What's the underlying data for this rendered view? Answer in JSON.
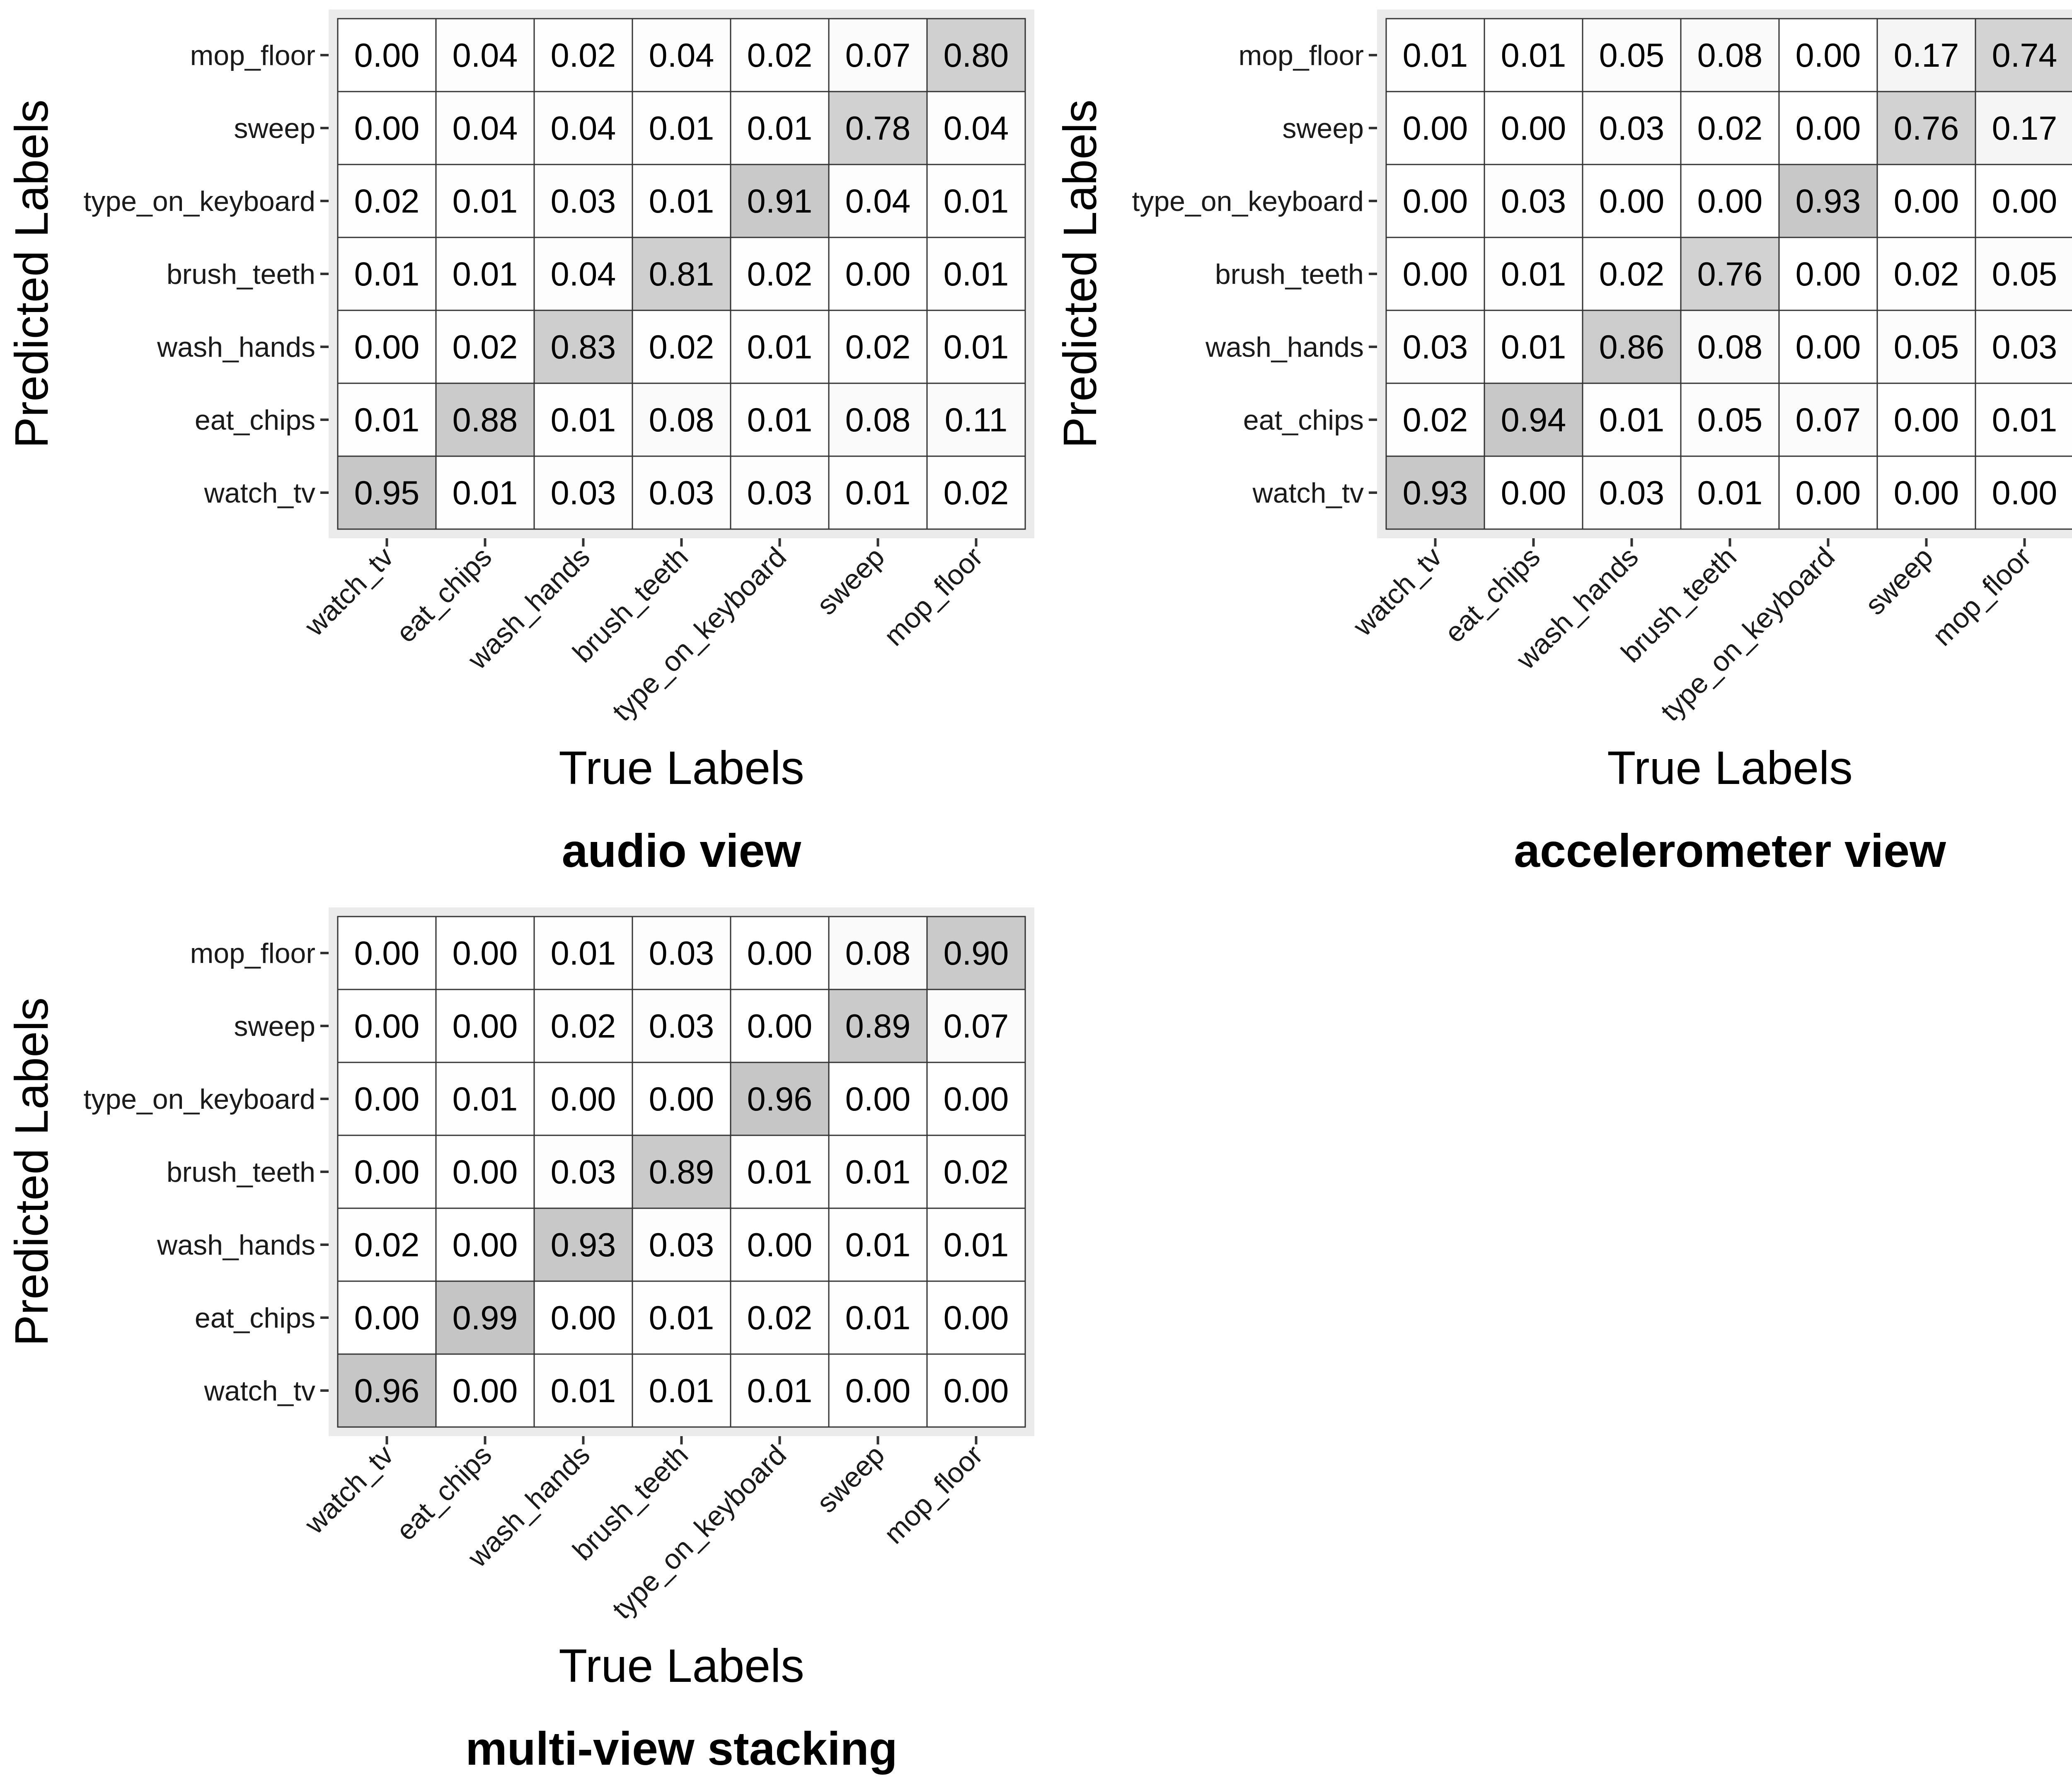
{
  "chart_data": [
    {
      "type": "heatmap",
      "title": "audio view",
      "xlabel": "True Labels",
      "ylabel": "Predicted Labels",
      "x_categories": [
        "watch_tv",
        "eat_chips",
        "wash_hands",
        "brush_teeth",
        "type_on_keyboard",
        "sweep",
        "mop_floor"
      ],
      "y_categories": [
        "mop_floor",
        "sweep",
        "type_on_keyboard",
        "brush_teeth",
        "wash_hands",
        "eat_chips",
        "watch_tv"
      ],
      "values": [
        [
          "0.00",
          "0.04",
          "0.02",
          "0.04",
          "0.02",
          "0.07",
          "0.80"
        ],
        [
          "0.00",
          "0.04",
          "0.04",
          "0.01",
          "0.01",
          "0.78",
          "0.04"
        ],
        [
          "0.02",
          "0.01",
          "0.03",
          "0.01",
          "0.91",
          "0.04",
          "0.01"
        ],
        [
          "0.01",
          "0.01",
          "0.04",
          "0.81",
          "0.02",
          "0.00",
          "0.01"
        ],
        [
          "0.00",
          "0.02",
          "0.83",
          "0.02",
          "0.01",
          "0.02",
          "0.01"
        ],
        [
          "0.01",
          "0.88",
          "0.01",
          "0.08",
          "0.01",
          "0.08",
          "0.11"
        ],
        [
          "0.95",
          "0.01",
          "0.03",
          "0.03",
          "0.03",
          "0.01",
          "0.02"
        ]
      ],
      "grid": true
    },
    {
      "type": "heatmap",
      "title": "accelerometer view",
      "xlabel": "True Labels",
      "ylabel": "Predicted Labels",
      "x_categories": [
        "watch_tv",
        "eat_chips",
        "wash_hands",
        "brush_teeth",
        "type_on_keyboard",
        "sweep",
        "mop_floor"
      ],
      "y_categories": [
        "mop_floor",
        "sweep",
        "type_on_keyboard",
        "brush_teeth",
        "wash_hands",
        "eat_chips",
        "watch_tv"
      ],
      "values": [
        [
          "0.01",
          "0.01",
          "0.05",
          "0.08",
          "0.00",
          "0.17",
          "0.74"
        ],
        [
          "0.00",
          "0.00",
          "0.03",
          "0.02",
          "0.00",
          "0.76",
          "0.17"
        ],
        [
          "0.00",
          "0.03",
          "0.00",
          "0.00",
          "0.93",
          "0.00",
          "0.00"
        ],
        [
          "0.00",
          "0.01",
          "0.02",
          "0.76",
          "0.00",
          "0.02",
          "0.05"
        ],
        [
          "0.03",
          "0.01",
          "0.86",
          "0.08",
          "0.00",
          "0.05",
          "0.03"
        ],
        [
          "0.02",
          "0.94",
          "0.01",
          "0.05",
          "0.07",
          "0.00",
          "0.01"
        ],
        [
          "0.93",
          "0.00",
          "0.03",
          "0.01",
          "0.00",
          "0.00",
          "0.00"
        ]
      ],
      "grid": true
    },
    {
      "type": "heatmap",
      "title": "multi-view stacking",
      "xlabel": "True Labels",
      "ylabel": "Predicted Labels",
      "x_categories": [
        "watch_tv",
        "eat_chips",
        "wash_hands",
        "brush_teeth",
        "type_on_keyboard",
        "sweep",
        "mop_floor"
      ],
      "y_categories": [
        "mop_floor",
        "sweep",
        "type_on_keyboard",
        "brush_teeth",
        "wash_hands",
        "eat_chips",
        "watch_tv"
      ],
      "values": [
        [
          "0.00",
          "0.00",
          "0.01",
          "0.03",
          "0.00",
          "0.08",
          "0.90"
        ],
        [
          "0.00",
          "0.00",
          "0.02",
          "0.03",
          "0.00",
          "0.89",
          "0.07"
        ],
        [
          "0.00",
          "0.01",
          "0.00",
          "0.00",
          "0.96",
          "0.00",
          "0.00"
        ],
        [
          "0.00",
          "0.00",
          "0.03",
          "0.89",
          "0.01",
          "0.01",
          "0.02"
        ],
        [
          "0.02",
          "0.00",
          "0.93",
          "0.03",
          "0.00",
          "0.01",
          "0.01"
        ],
        [
          "0.00",
          "0.99",
          "0.00",
          "0.01",
          "0.02",
          "0.01",
          "0.00"
        ],
        [
          "0.96",
          "0.00",
          "0.01",
          "0.01",
          "0.01",
          "0.00",
          "0.00"
        ]
      ],
      "grid": true
    }
  ],
  "colors": {
    "cell_low": "#ffffff",
    "cell_high": "#c4c4c4",
    "cell_border": "#333333",
    "panel_background": "#ebebeb",
    "tick": "#333333"
  }
}
